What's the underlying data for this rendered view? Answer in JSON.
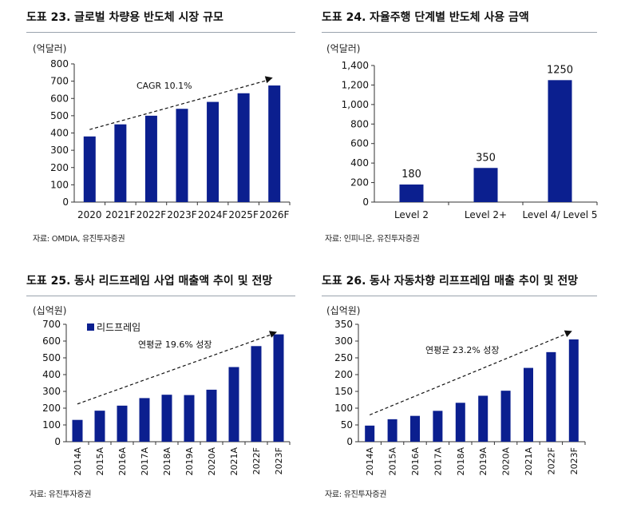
{
  "colors": {
    "bar": "#0b1f8f",
    "axis": "#333333",
    "text": "#111111"
  },
  "chart_data": [
    {
      "type": "bar",
      "figure_label": "도표 23.",
      "title": "글로벌 차량용 반도체 시장 규모",
      "unit": "(억달러)",
      "source": "자료: OMDIA, 유진투자증권",
      "categories": [
        "2020",
        "2021F",
        "2022F",
        "2023F",
        "2024F",
        "2025F",
        "2026F"
      ],
      "values": [
        380,
        450,
        500,
        540,
        580,
        630,
        675
      ],
      "yticks": [
        "0",
        "100",
        "200",
        "300",
        "400",
        "500",
        "600",
        "700",
        "800"
      ],
      "ylim": [
        0,
        800
      ],
      "annotation": "CAGR 10.1%",
      "trend": [
        420,
        720
      ]
    },
    {
      "type": "bar",
      "figure_label": "도표 24.",
      "title": "자율주행 단계별 반도체 사용 금액",
      "unit": "(억달러)",
      "source": "자료: 인피니온, 유진투자증권",
      "categories": [
        "Level 2",
        "Level 2+",
        "Level 4/ Level 5"
      ],
      "values": [
        180,
        350,
        1250
      ],
      "data_labels": [
        "180",
        "350",
        "1250"
      ],
      "yticks": [
        "0",
        "200",
        "400",
        "600",
        "800",
        "1,000",
        "1,200",
        "1,400"
      ],
      "ylim": [
        0,
        1400
      ]
    },
    {
      "type": "bar",
      "figure_label": "도표 25.",
      "title": "동사 리드프레임 사업 매출액 추이 및 전망",
      "unit": "(십억원)",
      "source": "자료: 유진투자증권",
      "legend": "리드프레임",
      "categories": [
        "2014A",
        "2015A",
        "2016A",
        "2017A",
        "2018A",
        "2019A",
        "2020A",
        "2021A",
        "2022F",
        "2023F"
      ],
      "values": [
        130,
        185,
        215,
        260,
        280,
        278,
        310,
        445,
        570,
        640
      ],
      "yticks": [
        "0",
        "100",
        "200",
        "300",
        "400",
        "500",
        "600",
        "700"
      ],
      "ylim": [
        0,
        700
      ],
      "annotation": "연평균 19.6% 성장",
      "trend": [
        225,
        655
      ]
    },
    {
      "type": "bar",
      "figure_label": "도표 26.",
      "title": "동사 자동차향 리프프레임 매출 추이 및 전망",
      "unit": "(십억원)",
      "source": "자료: 유진투자증권",
      "categories": [
        "2014A",
        "2015A",
        "2016A",
        "2017A",
        "2018A",
        "2019A",
        "2020A",
        "2021A",
        "2022F",
        "2023F"
      ],
      "values": [
        48,
        67,
        77,
        92,
        116,
        137,
        152,
        220,
        267,
        305
      ],
      "yticks": [
        "0",
        "50",
        "100",
        "150",
        "200",
        "250",
        "300",
        "350"
      ],
      "ylim": [
        0,
        350
      ],
      "annotation": "연평균 23.2% 성장",
      "trend": [
        80,
        330
      ]
    }
  ]
}
